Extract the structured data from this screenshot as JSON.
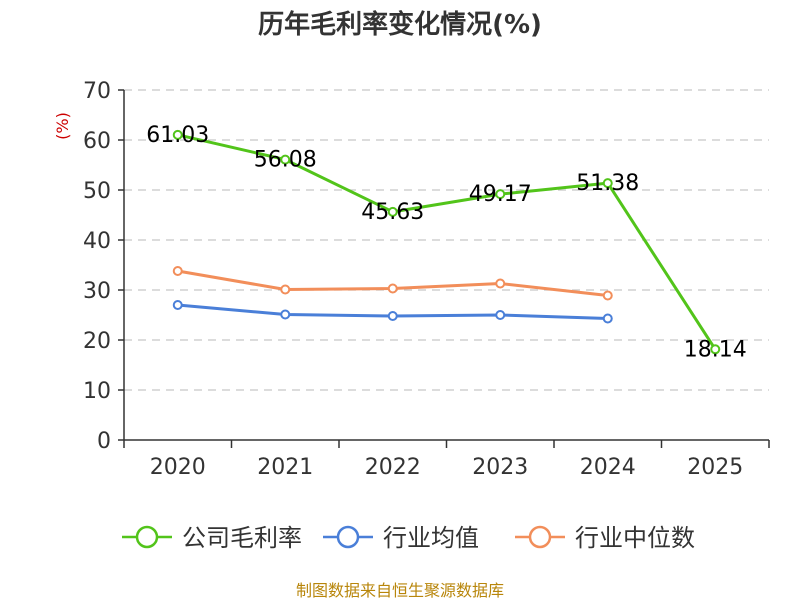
{
  "chart_data": {
    "type": "line",
    "title": "历年毛利率变化情况(%)",
    "ylabel": "(%)",
    "xlabel": "",
    "categories": [
      "2020",
      "2021",
      "2022",
      "2023",
      "2024",
      "2025"
    ],
    "ylim": [
      0,
      70
    ],
    "yticks": [
      0,
      10,
      20,
      30,
      40,
      50,
      60,
      70
    ],
    "grid": true,
    "legend_position": "bottom",
    "series": [
      {
        "name": "公司毛利率",
        "color": "#52c41a",
        "values": [
          61.03,
          56.08,
          45.63,
          49.17,
          51.38,
          18.14
        ],
        "labels": [
          "61.03",
          "56.08",
          "45.63",
          "49.17",
          "51.38",
          "18.14"
        ]
      },
      {
        "name": "行业均值",
        "color": "#4a7fd8",
        "values": [
          27.0,
          25.1,
          24.8,
          25.0,
          24.3,
          null
        ]
      },
      {
        "name": "行业中位数",
        "color": "#f28e5a",
        "values": [
          33.8,
          30.1,
          30.3,
          31.3,
          28.9,
          null
        ]
      }
    ]
  },
  "source_text": "制图数据来自恒生聚源数据库"
}
